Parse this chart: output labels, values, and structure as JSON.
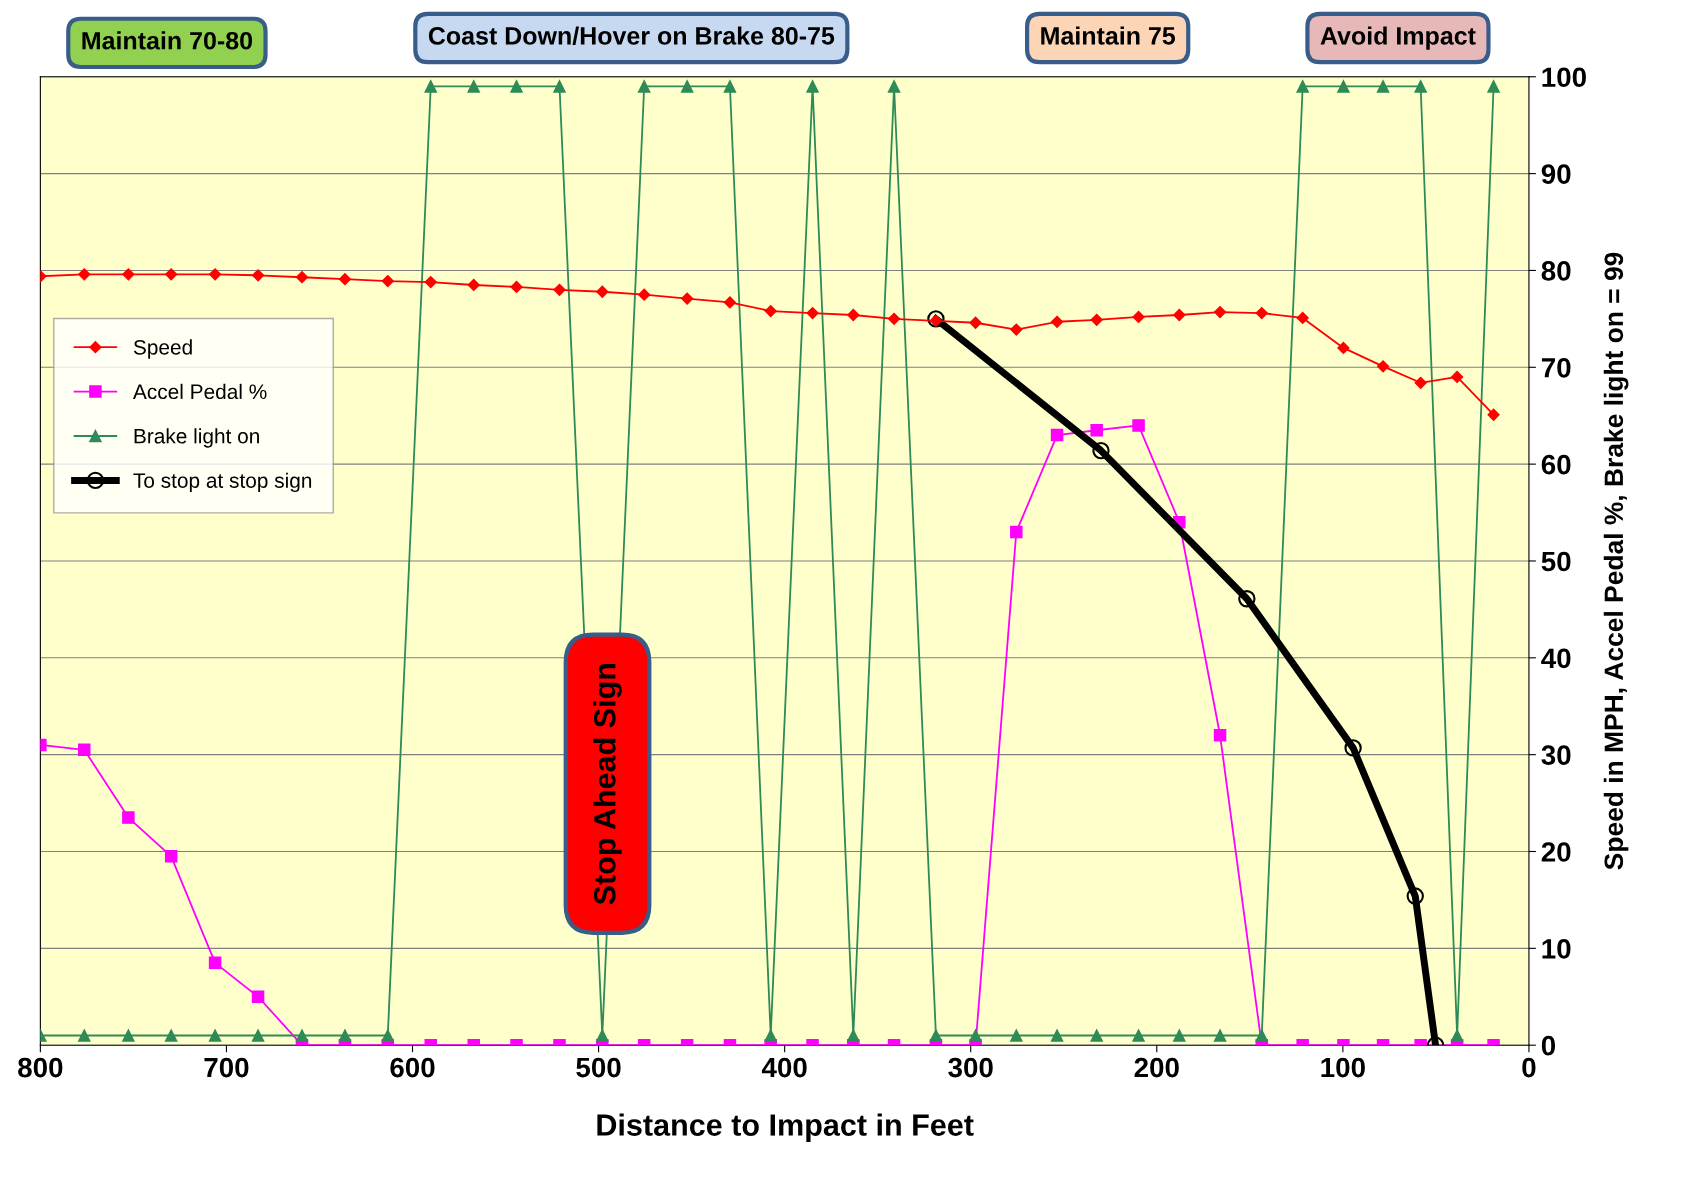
{
  "chart_data": {
    "type": "line",
    "xlabel": "Distance to Impact in Feet",
    "ylabel": "Speed in MPH, Accel Pedal %, Brake light on = 99",
    "x": [
      800,
      776.4,
      752.7,
      729.7,
      706.1,
      683,
      659.4,
      636.3,
      613.3,
      590.2,
      567.1,
      544.1,
      521,
      498,
      475.5,
      452.4,
      429.4,
      407.5,
      385,
      363.1,
      341.2,
      318.7,
      297.4,
      275.5,
      253.6,
      232.3,
      209.8,
      187.9,
      166,
      143.6,
      121.6,
      99.7,
      78.4,
      58.2,
      38.6,
      19
    ],
    "series": [
      {
        "name": "Speed",
        "color": "#ff0000",
        "marker": "diamond",
        "values": [
          79.4,
          79.6,
          79.6,
          79.6,
          79.6,
          79.5,
          79.3,
          79.1,
          78.9,
          78.8,
          78.5,
          78.3,
          78.0,
          77.8,
          77.5,
          77.1,
          76.7,
          75.8,
          75.6,
          75.4,
          75.0,
          74.8,
          74.6,
          73.9,
          74.7,
          74.9,
          75.2,
          75.4,
          75.7,
          75.6,
          75.1,
          72.0,
          70.1,
          68.4,
          69.0,
          65.1
        ]
      },
      {
        "name": "Accel Pedal %",
        "color": "#ff00ff",
        "marker": "square",
        "values": [
          31,
          30.5,
          23.5,
          19.5,
          8.5,
          5,
          0,
          0,
          0,
          0,
          0,
          0,
          0,
          0,
          0,
          0,
          0,
          0,
          0,
          0,
          0,
          0,
          0,
          53,
          63,
          63.5,
          64,
          54,
          32,
          0,
          0,
          0,
          0,
          0,
          0,
          0
        ]
      },
      {
        "name": "Brake light on",
        "color": "#2e8b57",
        "marker": "triangle",
        "values": [
          1,
          1,
          1,
          1,
          1,
          1,
          1,
          1,
          1,
          99,
          99,
          99,
          99,
          1,
          99,
          99,
          99,
          1,
          99,
          1,
          99,
          1,
          1,
          1,
          1,
          1,
          1,
          1,
          1,
          1,
          99,
          99,
          99,
          99,
          1,
          99
        ]
      },
      {
        "name": "To stop at stop sign",
        "color": "#000000",
        "marker": "circle",
        "x": [
          318.7,
          230,
          151.6,
          94.5,
          61.1,
          50.2
        ],
        "values": [
          75,
          61.4,
          46.1,
          30.7,
          15.4,
          0
        ]
      }
    ],
    "annotations": [
      "Maintain 70-80",
      "Coast Down/Hover on Brake 80-75",
      "Maintain 75",
      "Avoid Impact",
      "Stop Ahead Sign"
    ],
    "xlim": [
      800,
      0
    ],
    "xticks": [
      800,
      700,
      600,
      500,
      400,
      300,
      200,
      100,
      0
    ],
    "ylim": [
      0,
      100
    ],
    "yticks": [
      0,
      10,
      20,
      30,
      40,
      50,
      60,
      70,
      80,
      90,
      100
    ],
    "grid": "y",
    "legend": "center left"
  }
}
